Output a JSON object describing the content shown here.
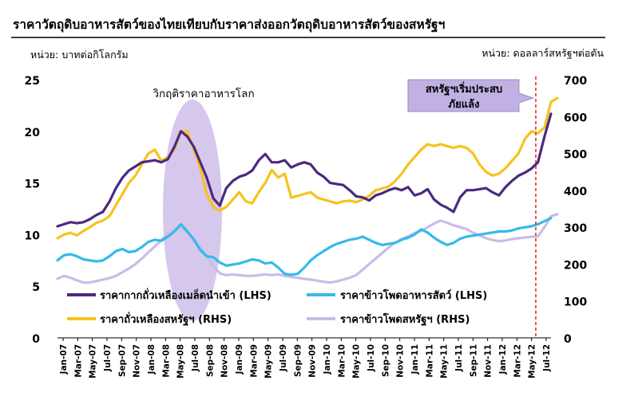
{
  "chart_data": {
    "type": "line",
    "title": "ราคาวัตถุดิบอาหารสัตว์ของไทยเทียบกับราคาส่งออกวัตถุดิบอาหารสัตว์ของสหรัฐฯ",
    "ylabel_left": "หน่วย: บาทต่อกิโลกรัม",
    "ylabel_right": "หน่วย: ดอลลาร์สหรัฐฯต่อตัน",
    "ylim_left": [
      0,
      25
    ],
    "ylim_right": [
      0,
      700
    ],
    "yticks_left": [
      "0",
      "5",
      "10",
      "15",
      "20",
      "25"
    ],
    "yticks_right": [
      "0",
      "100",
      "200",
      "300",
      "400",
      "500",
      "600",
      "700"
    ],
    "x_tick_labels": [
      "Jan-07",
      "Mar-07",
      "May-07",
      "Jul-07",
      "Sep-07",
      "Nov-07",
      "Jan-08",
      "Mar-08",
      "May-08",
      "Jul-08",
      "Sep-08",
      "Nov-08",
      "Jan-09",
      "Mar-09",
      "May-09",
      "Jul-09",
      "Sep-09",
      "Nov-09",
      "Jan-10",
      "Mar-10",
      "May-10",
      "Jul-10",
      "Sep-10",
      "Nov-10",
      "Jan-11",
      "Mar-11",
      "May-11",
      "Jul-11",
      "Sep-11",
      "Nov-11",
      "Jan-12",
      "Mar-12",
      "May-12",
      "Jul-12"
    ],
    "annotations": {
      "crisis": "วิกฤติราคาอาหารโลก",
      "drought_line1": "สหรัฐฯเริ่มประสบ",
      "drought_line2": "ภัยแล้ง"
    },
    "legend": "bottom",
    "series": [
      {
        "name": "ราคากากถั่วเหลืองเมล็ดนำเข้า (LHS)",
        "axis": "left",
        "color": "#4b2a7f",
        "values": [
          10.8,
          11.0,
          11.2,
          11.1,
          11.2,
          11.5,
          11.9,
          12.2,
          13.2,
          14.5,
          15.5,
          16.2,
          16.6,
          17.0,
          17.1,
          17.2,
          17.0,
          17.3,
          18.5,
          20.0,
          19.5,
          18.5,
          17.0,
          15.5,
          13.5,
          12.8,
          14.5,
          15.2,
          15.6,
          15.8,
          16.2,
          17.2,
          17.8,
          17.0,
          17.0,
          17.2,
          16.5,
          16.8,
          17.0,
          16.8,
          16.0,
          15.6,
          15.0,
          14.9,
          14.8,
          14.3,
          13.7,
          13.6,
          13.3,
          13.8,
          14.0,
          14.3,
          14.5,
          14.3,
          14.6,
          13.8,
          14.0,
          14.4,
          13.4,
          12.9,
          12.6,
          12.2,
          13.6,
          14.3,
          14.3,
          14.4,
          14.5,
          14.1,
          13.8,
          14.6,
          15.2,
          15.7,
          16.0,
          16.4,
          17.0,
          19.5,
          21.7
        ]
      },
      {
        "name": "ราคาข้าวโพดอาหารสัตว์ (LHS)",
        "axis": "left",
        "color": "#33bbe8",
        "values": [
          7.5,
          8.0,
          8.1,
          7.9,
          7.6,
          7.5,
          7.4,
          7.5,
          7.9,
          8.4,
          8.6,
          8.3,
          8.4,
          8.8,
          9.3,
          9.5,
          9.4,
          9.8,
          10.3,
          11.0,
          10.3,
          9.5,
          8.5,
          7.9,
          7.8,
          7.3,
          7.0,
          7.1,
          7.2,
          7.4,
          7.6,
          7.5,
          7.2,
          7.3,
          6.8,
          6.2,
          6.1,
          6.2,
          6.8,
          7.5,
          8.0,
          8.4,
          8.8,
          9.1,
          9.3,
          9.5,
          9.6,
          9.8,
          9.5,
          9.2,
          9.0,
          9.1,
          9.2,
          9.5,
          9.7,
          10.0,
          10.5,
          10.2,
          9.7,
          9.3,
          9.0,
          9.2,
          9.6,
          9.8,
          9.9,
          10.0,
          10.1,
          10.2,
          10.3,
          10.3,
          10.4,
          10.6,
          10.7,
          10.8,
          11.0,
          11.3,
          11.6
        ]
      },
      {
        "name": "ราคาถั่วเหลืองสหรัฐฯ (RHS)",
        "axis": "right",
        "color": "#f7c21c",
        "values": [
          270,
          280,
          285,
          278,
          290,
          300,
          312,
          318,
          330,
          360,
          390,
          420,
          440,
          470,
          500,
          510,
          480,
          490,
          510,
          560,
          560,
          510,
          460,
          390,
          355,
          345,
          355,
          375,
          395,
          370,
          365,
          395,
          420,
          455,
          435,
          445,
          380,
          385,
          390,
          395,
          380,
          375,
          370,
          365,
          370,
          372,
          368,
          375,
          385,
          400,
          405,
          410,
          425,
          445,
          470,
          490,
          510,
          525,
          520,
          525,
          520,
          515,
          520,
          515,
          500,
          470,
          450,
          440,
          445,
          460,
          480,
          500,
          540,
          560,
          555,
          570,
          640,
          650
        ]
      },
      {
        "name": "ราคาข้าวโพดสหรัฐฯ (RHS)",
        "axis": "right",
        "color": "#c9bce8",
        "values": [
          160,
          168,
          163,
          156,
          150,
          150,
          154,
          158,
          162,
          168,
          178,
          188,
          200,
          215,
          232,
          248,
          265,
          283,
          292,
          300,
          285,
          270,
          245,
          220,
          195,
          175,
          170,
          172,
          170,
          168,
          168,
          170,
          172,
          170,
          172,
          168,
          165,
          163,
          160,
          158,
          155,
          152,
          150,
          153,
          158,
          163,
          170,
          185,
          200,
          215,
          230,
          245,
          258,
          268,
          275,
          284,
          290,
          300,
          310,
          318,
          312,
          305,
          300,
          295,
          285,
          278,
          270,
          265,
          262,
          264,
          268,
          270,
          272,
          274,
          275,
          300,
          330,
          335
        ]
      }
    ]
  }
}
